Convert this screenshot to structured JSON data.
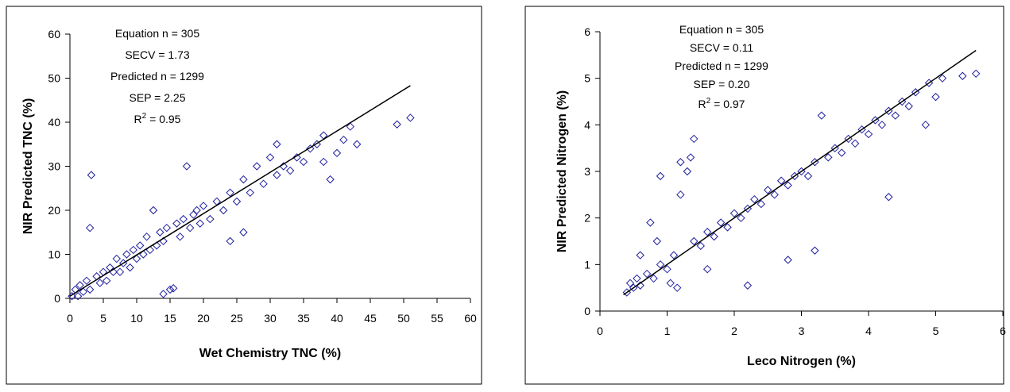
{
  "chart_data": [
    {
      "type": "scatter",
      "annotations": [
        "Equation n = 305",
        "SECV = 1.73",
        "Predicted n = 1299",
        "SEP = 2.25"
      ],
      "r2": {
        "base": "R",
        "sup": "2",
        "rest": " = 0.95"
      },
      "x_label": "Wet Chemistry TNC (%)",
      "y_label": "NIR Predicted TNC (%)",
      "color": "#1f1f9f",
      "x": [
        0.3,
        0.8,
        1.2,
        1.5,
        2,
        2.5,
        3,
        3,
        3.2,
        4,
        4.5,
        5,
        5.5,
        6,
        6.5,
        7,
        7.5,
        8,
        8.5,
        9,
        9.5,
        10,
        10.5,
        11,
        11.5,
        12,
        12.5,
        13,
        13.5,
        14,
        14,
        14.5,
        15,
        15.5,
        16,
        16.5,
        17,
        17.5,
        18,
        18.5,
        19,
        19.5,
        20,
        21,
        22,
        23,
        24,
        24,
        25,
        26,
        26,
        27,
        28,
        29,
        30,
        31,
        31,
        32,
        33,
        34,
        35,
        36,
        37,
        38,
        38,
        39,
        40,
        41,
        42,
        43,
        49,
        51
      ],
      "values": [
        0.5,
        2,
        0.5,
        3,
        1.5,
        4,
        2,
        16,
        28,
        5,
        3.5,
        6,
        4,
        7,
        6,
        9,
        6,
        8,
        10,
        7,
        11,
        9,
        12,
        10,
        14,
        11,
        20,
        12,
        15,
        1,
        13,
        16,
        2,
        2.3,
        17,
        14,
        18,
        30,
        16,
        19,
        20,
        17,
        21,
        18,
        22,
        20,
        13,
        24,
        22,
        15,
        27,
        24,
        30,
        26,
        32,
        28,
        35,
        30,
        29,
        32,
        31,
        34,
        35,
        37,
        31,
        27,
        33,
        36,
        39,
        35,
        39.5,
        41
      ],
      "fit_x": [
        0,
        51
      ],
      "fit_y": [
        0.5,
        48.3
      ],
      "xlim": [
        0,
        60
      ],
      "xticks": [
        0,
        5,
        10,
        15,
        20,
        25,
        30,
        35,
        40,
        45,
        50,
        55,
        60
      ],
      "ylim": [
        0,
        60
      ],
      "yticks": [
        0,
        10,
        20,
        30,
        40,
        50,
        60
      ]
    },
    {
      "type": "scatter",
      "annotations": [
        "Equation n = 305",
        "SECV = 0.11",
        "Predicted n = 1299",
        "SEP = 0.20"
      ],
      "r2": {
        "base": "R",
        "sup": "2",
        "rest": " = 0.97"
      },
      "x_label": "Leco Nitrogen (%)",
      "y_label": "NIR Predicted Nitrogen (%)",
      "color": "#1f1f9f",
      "x": [
        0.4,
        0.45,
        0.5,
        0.55,
        0.6,
        0.6,
        0.7,
        0.75,
        0.8,
        0.85,
        0.9,
        0.9,
        1.0,
        1.05,
        1.1,
        1.15,
        1.2,
        1.2,
        1.3,
        1.35,
        1.4,
        1.4,
        1.5,
        1.6,
        1.6,
        1.7,
        1.8,
        1.9,
        2.0,
        2.1,
        2.2,
        2.2,
        2.3,
        2.4,
        2.5,
        2.6,
        2.7,
        2.8,
        2.8,
        2.9,
        3.0,
        3.1,
        3.2,
        3.2,
        3.3,
        3.4,
        3.5,
        3.6,
        3.7,
        3.8,
        3.9,
        4.0,
        4.1,
        4.2,
        4.3,
        4.3,
        4.4,
        4.5,
        4.6,
        4.7,
        4.85,
        4.9,
        5.0,
        5.1,
        5.4,
        5.6
      ],
      "values": [
        0.4,
        0.6,
        0.5,
        0.7,
        1.2,
        0.55,
        0.8,
        1.9,
        0.7,
        1.5,
        2.9,
        1.0,
        0.9,
        0.6,
        1.2,
        0.5,
        3.2,
        2.5,
        3.0,
        3.3,
        3.7,
        1.5,
        1.4,
        0.9,
        1.7,
        1.6,
        1.9,
        1.8,
        2.1,
        2.0,
        0.55,
        2.2,
        2.4,
        2.3,
        2.6,
        2.5,
        2.8,
        1.1,
        2.7,
        2.9,
        3.0,
        2.9,
        1.3,
        3.2,
        4.2,
        3.3,
        3.5,
        3.4,
        3.7,
        3.6,
        3.9,
        3.8,
        4.1,
        4.0,
        2.45,
        4.3,
        4.2,
        4.5,
        4.4,
        4.7,
        4.0,
        4.9,
        4.6,
        5.0,
        5.05,
        5.1
      ],
      "fit_x": [
        0.35,
        5.6
      ],
      "fit_y": [
        0.35,
        5.6
      ],
      "xlim": [
        0,
        6
      ],
      "xticks": [
        0,
        1,
        2,
        3,
        4,
        5,
        6
      ],
      "ylim": [
        0,
        6
      ],
      "yticks": [
        0,
        1,
        2,
        3,
        4,
        5,
        6
      ]
    }
  ]
}
